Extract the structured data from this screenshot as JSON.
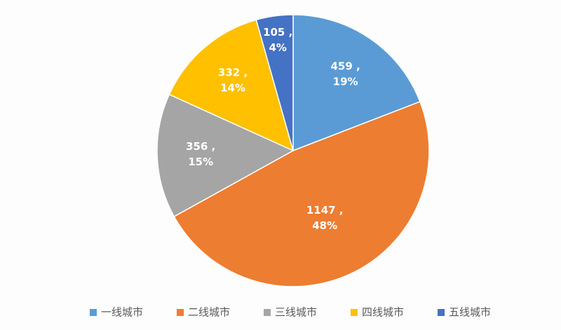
{
  "chart_data": {
    "type": "pie",
    "categories": [
      "一线城市",
      "二线城市",
      "三线城市",
      "四线城市",
      "五线城市"
    ],
    "values": [
      459,
      1147,
      356,
      332,
      105
    ],
    "value_labels": [
      "459 ,",
      "1147 ,",
      "356 ,",
      "332 ,",
      "105 ,"
    ],
    "percent_labels": [
      "19%",
      "48%",
      "15%",
      "14%",
      "4%"
    ],
    "colors": [
      "#5b9bd5",
      "#ed7d31",
      "#a5a5a5",
      "#ffc000",
      "#4472c4"
    ],
    "legend": "bottom"
  }
}
